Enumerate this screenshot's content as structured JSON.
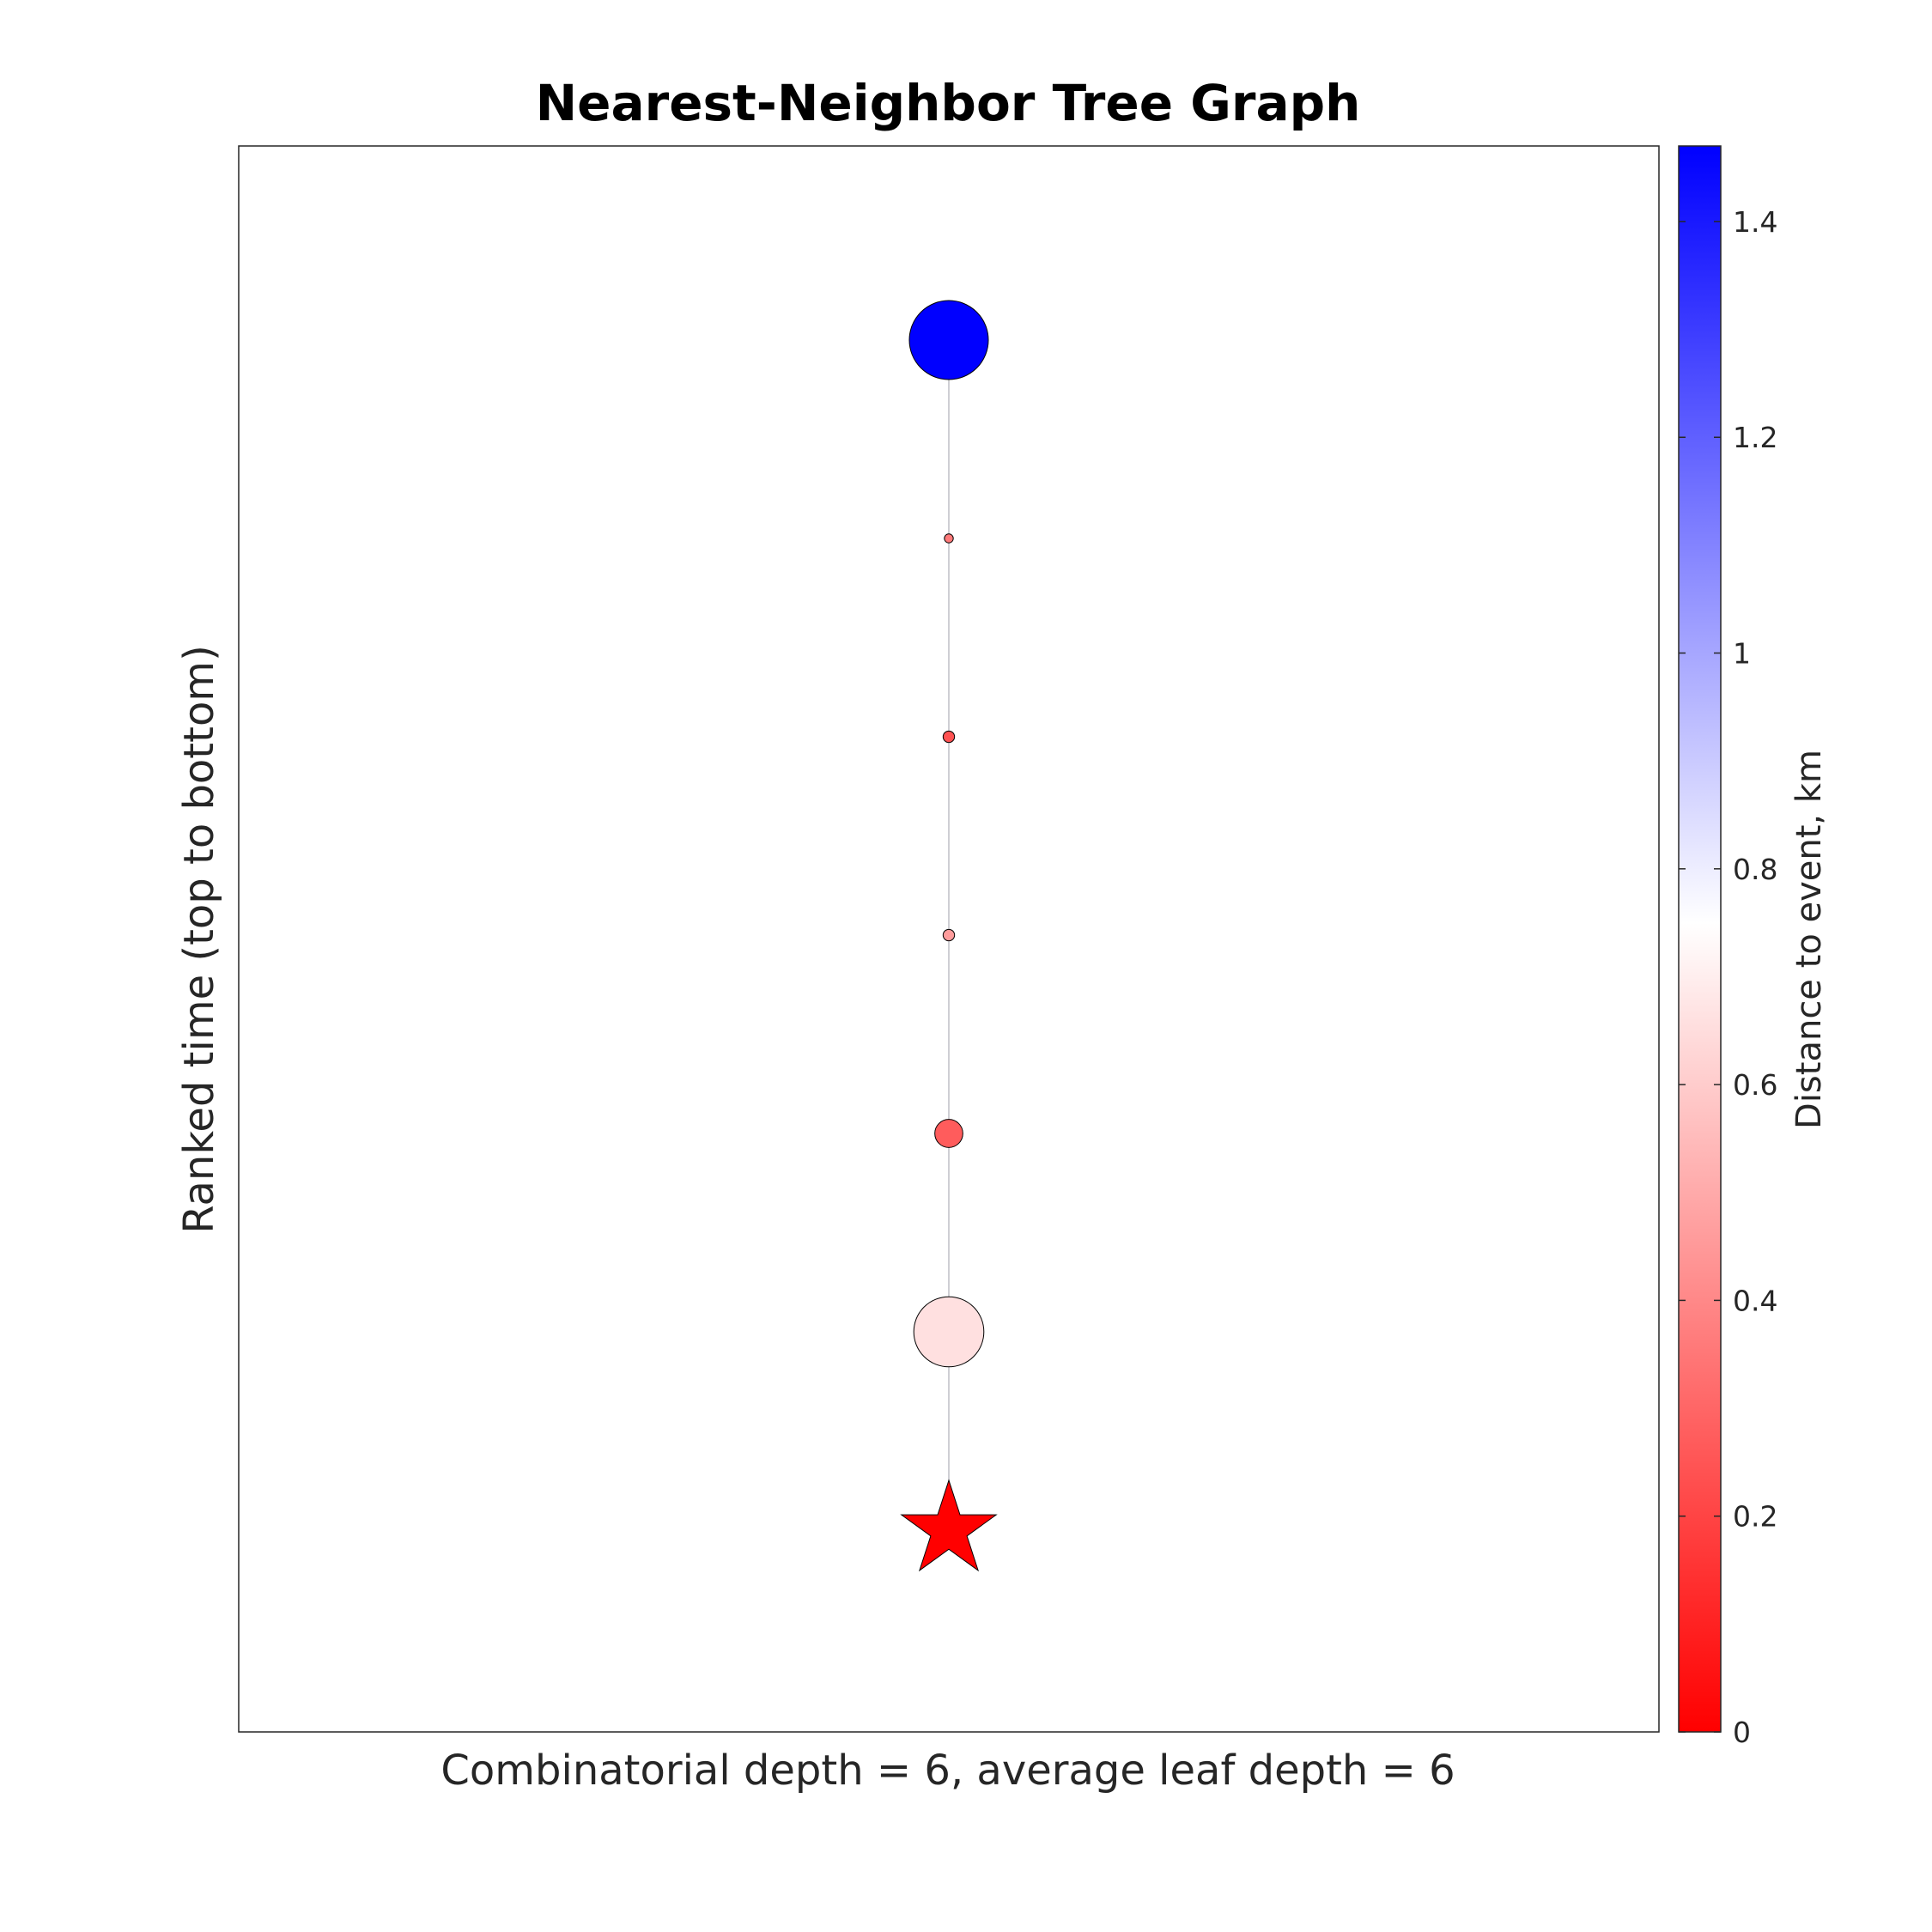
{
  "chart_data": {
    "type": "scatter",
    "title": "Nearest-Neighbor Tree Graph",
    "xlabel": "Combinatorial depth = 6, average leaf depth = 6",
    "ylabel": "Ranked time (top to bottom)",
    "grid": false,
    "x_axis_ticks": "none",
    "y_axis_ticks": "none",
    "y_direction": "rank 0 at bottom (event), increasing upward",
    "colorbar": {
      "label": "Distance to event, km",
      "range": [
        0,
        1.47
      ],
      "ticks": [
        0,
        0.2,
        0.4,
        0.6,
        0.8,
        1,
        1.2,
        1.4
      ],
      "tick_labels": [
        "0",
        "0.2",
        "0.4",
        "0.6",
        "0.8",
        "1",
        "1.2",
        "1.4"
      ],
      "colormap": [
        "#ff0000",
        "#ffffff",
        "#0000ff"
      ],
      "colormap_midpoint": 0.75
    },
    "edge_color": "#bfbfc6",
    "nodes": [
      {
        "rank": 0,
        "x": 0,
        "distance_km": 0.0,
        "marker": "star",
        "size": 1.0
      },
      {
        "rank": 1,
        "x": 0,
        "distance_km": 0.66,
        "marker": "circle",
        "size": 0.55
      },
      {
        "rank": 2,
        "x": 0,
        "distance_km": 0.27,
        "marker": "circle",
        "size": 0.22
      },
      {
        "rank": 3,
        "x": 0,
        "distance_km": 0.46,
        "marker": "circle",
        "size": 0.09
      },
      {
        "rank": 4,
        "x": 0,
        "distance_km": 0.24,
        "marker": "circle",
        "size": 0.09
      },
      {
        "rank": 5,
        "x": 0,
        "distance_km": 0.36,
        "marker": "circle",
        "size": 0.07
      },
      {
        "rank": 6,
        "x": 0,
        "distance_km": 1.47,
        "marker": "circle",
        "size": 0.62
      }
    ],
    "edges": [
      [
        0,
        1
      ],
      [
        1,
        2
      ],
      [
        2,
        3
      ],
      [
        3,
        4
      ],
      [
        4,
        5
      ],
      [
        5,
        6
      ]
    ]
  }
}
